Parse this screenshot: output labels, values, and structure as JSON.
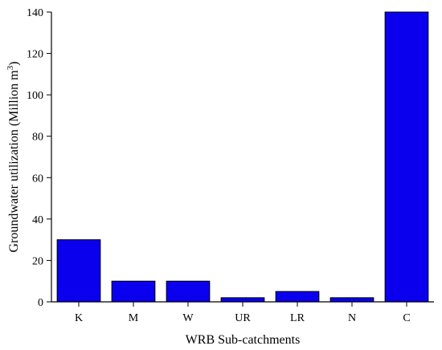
{
  "chart_data": {
    "type": "bar",
    "categories": [
      "K",
      "M",
      "W",
      "UR",
      "LR",
      "N",
      "C"
    ],
    "values": [
      30,
      10,
      10,
      2,
      5,
      2,
      140
    ],
    "title": "",
    "xlabel": "WRB Sub-catchments",
    "ylabel_prefix": "Groundwater utilization (Million m",
    "ylabel_superscript": "3",
    "ylabel_suffix": ")",
    "ylim": [
      0,
      140
    ],
    "yticks": [
      0,
      20,
      40,
      60,
      80,
      100,
      120,
      140
    ],
    "bar_color": "#0a00ee",
    "grid": false,
    "legend": "none"
  }
}
